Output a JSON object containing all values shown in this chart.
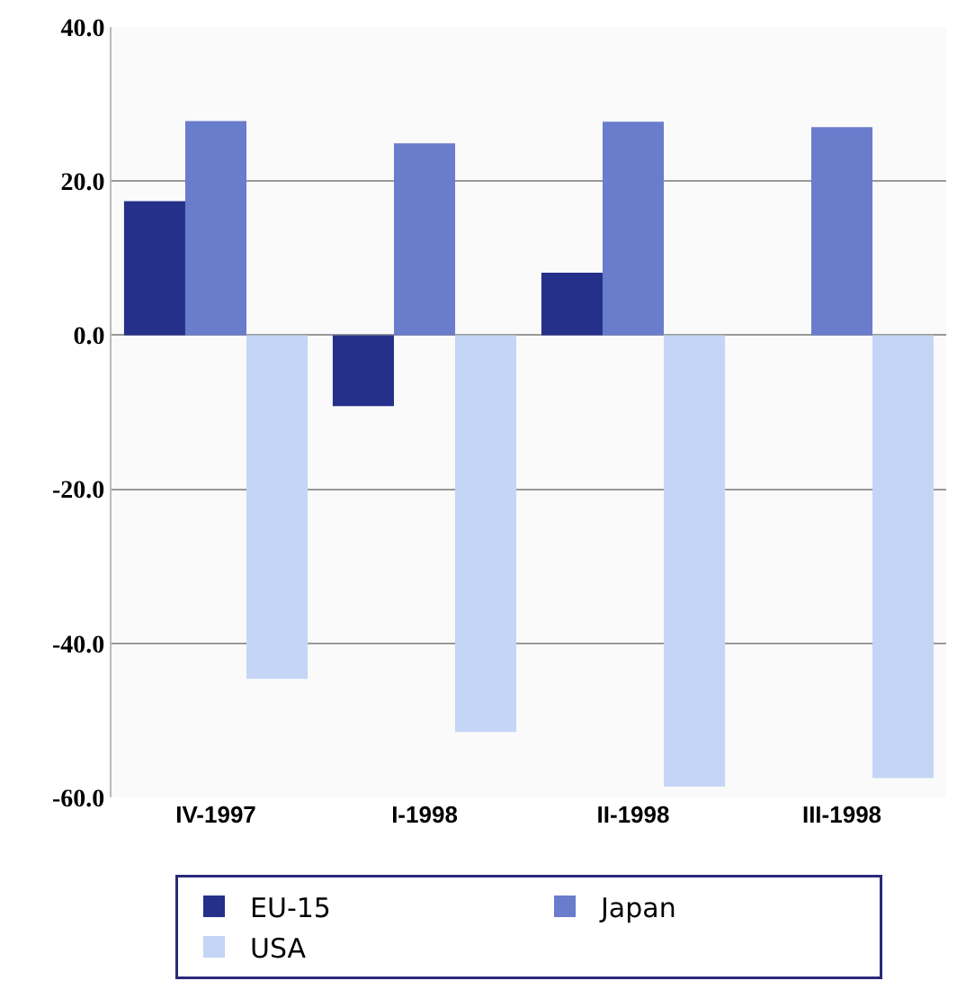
{
  "chart_data": {
    "type": "bar",
    "categories": [
      "IV-1997",
      "I-1998",
      "II-1998",
      "III-1998"
    ],
    "series": [
      {
        "name": "EU-15",
        "color": "#25308a",
        "values": [
          17.4,
          -9.2,
          8.1,
          0
        ]
      },
      {
        "name": "Japan",
        "color": "#6a7ccc",
        "values": [
          27.8,
          24.9,
          27.7,
          27.0
        ]
      },
      {
        "name": "USA",
        "color": "#c5d5f5",
        "values": [
          -44.6,
          -51.5,
          -58.6,
          -57.5
        ]
      }
    ],
    "ylim": [
      -60,
      40
    ],
    "yticks": [
      {
        "value": -60,
        "label": "-60.0"
      },
      {
        "value": -40,
        "label": "-40.0"
      },
      {
        "value": -20,
        "label": "-20.0"
      },
      {
        "value": 0,
        "label": "0.0"
      },
      {
        "value": 20,
        "label": "20.0"
      },
      {
        "value": 40,
        "label": "40.0"
      }
    ],
    "grid": "y",
    "legend": "bottom"
  }
}
